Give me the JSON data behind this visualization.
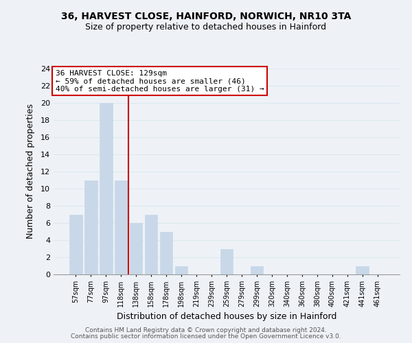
{
  "title1": "36, HARVEST CLOSE, HAINFORD, NORWICH, NR10 3TA",
  "title2": "Size of property relative to detached houses in Hainford",
  "xlabel": "Distribution of detached houses by size in Hainford",
  "ylabel": "Number of detached properties",
  "bar_labels": [
    "57sqm",
    "77sqm",
    "97sqm",
    "118sqm",
    "138sqm",
    "158sqm",
    "178sqm",
    "198sqm",
    "219sqm",
    "239sqm",
    "259sqm",
    "279sqm",
    "299sqm",
    "320sqm",
    "340sqm",
    "360sqm",
    "380sqm",
    "400sqm",
    "421sqm",
    "441sqm",
    "461sqm"
  ],
  "bar_values": [
    7,
    11,
    20,
    11,
    6,
    7,
    5,
    1,
    0,
    0,
    3,
    0,
    1,
    0,
    0,
    0,
    0,
    0,
    0,
    1,
    0
  ],
  "bar_color": "#c8d8e8",
  "bar_edge_color": "#c8d8e8",
  "grid_color": "#dce8f0",
  "annotation_line1": "36 HARVEST CLOSE: 129sqm",
  "annotation_line2": "← 59% of detached houses are smaller (46)",
  "annotation_line3": "40% of semi-detached houses are larger (31) →",
  "annotation_box_color": "white",
  "annotation_box_edgecolor": "#cc0000",
  "property_line_color": "#cc0000",
  "property_bar_index": 3,
  "ylim": [
    0,
    24
  ],
  "yticks": [
    0,
    2,
    4,
    6,
    8,
    10,
    12,
    14,
    16,
    18,
    20,
    22,
    24
  ],
  "footer1": "Contains HM Land Registry data © Crown copyright and database right 2024.",
  "footer2": "Contains public sector information licensed under the Open Government Licence v3.0.",
  "bg_color": "#eef2f7",
  "white_bg": "#ffffff"
}
